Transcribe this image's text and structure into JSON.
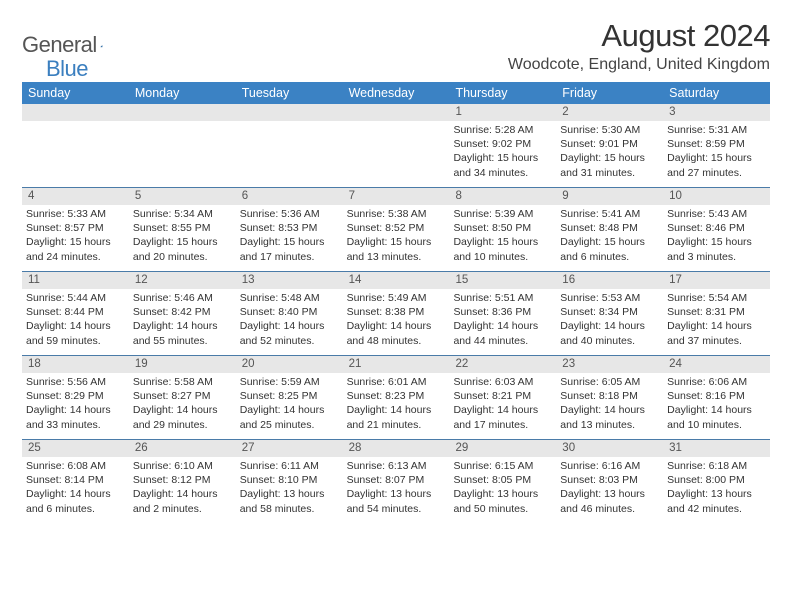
{
  "logo": {
    "text_gray": "General",
    "text_blue": "Blue"
  },
  "title": "August 2024",
  "location": "Woodcote, England, United Kingdom",
  "colors": {
    "header_bg": "#3b82c4",
    "header_fg": "#ffffff",
    "daynum_bg": "#e7e7e7",
    "daynum_fg": "#555555",
    "week_border": "#4a7ba8",
    "logo_gray": "#555555",
    "logo_blue": "#3b7fbf",
    "body_text": "#333333",
    "page_bg": "#ffffff"
  },
  "headers": [
    "Sunday",
    "Monday",
    "Tuesday",
    "Wednesday",
    "Thursday",
    "Friday",
    "Saturday"
  ],
  "weeks": [
    [
      {
        "num": "",
        "lines": []
      },
      {
        "num": "",
        "lines": []
      },
      {
        "num": "",
        "lines": []
      },
      {
        "num": "",
        "lines": []
      },
      {
        "num": "1",
        "lines": [
          "Sunrise: 5:28 AM",
          "Sunset: 9:02 PM",
          "Daylight: 15 hours",
          "and 34 minutes."
        ]
      },
      {
        "num": "2",
        "lines": [
          "Sunrise: 5:30 AM",
          "Sunset: 9:01 PM",
          "Daylight: 15 hours",
          "and 31 minutes."
        ]
      },
      {
        "num": "3",
        "lines": [
          "Sunrise: 5:31 AM",
          "Sunset: 8:59 PM",
          "Daylight: 15 hours",
          "and 27 minutes."
        ]
      }
    ],
    [
      {
        "num": "4",
        "lines": [
          "Sunrise: 5:33 AM",
          "Sunset: 8:57 PM",
          "Daylight: 15 hours",
          "and 24 minutes."
        ]
      },
      {
        "num": "5",
        "lines": [
          "Sunrise: 5:34 AM",
          "Sunset: 8:55 PM",
          "Daylight: 15 hours",
          "and 20 minutes."
        ]
      },
      {
        "num": "6",
        "lines": [
          "Sunrise: 5:36 AM",
          "Sunset: 8:53 PM",
          "Daylight: 15 hours",
          "and 17 minutes."
        ]
      },
      {
        "num": "7",
        "lines": [
          "Sunrise: 5:38 AM",
          "Sunset: 8:52 PM",
          "Daylight: 15 hours",
          "and 13 minutes."
        ]
      },
      {
        "num": "8",
        "lines": [
          "Sunrise: 5:39 AM",
          "Sunset: 8:50 PM",
          "Daylight: 15 hours",
          "and 10 minutes."
        ]
      },
      {
        "num": "9",
        "lines": [
          "Sunrise: 5:41 AM",
          "Sunset: 8:48 PM",
          "Daylight: 15 hours",
          "and 6 minutes."
        ]
      },
      {
        "num": "10",
        "lines": [
          "Sunrise: 5:43 AM",
          "Sunset: 8:46 PM",
          "Daylight: 15 hours",
          "and 3 minutes."
        ]
      }
    ],
    [
      {
        "num": "11",
        "lines": [
          "Sunrise: 5:44 AM",
          "Sunset: 8:44 PM",
          "Daylight: 14 hours",
          "and 59 minutes."
        ]
      },
      {
        "num": "12",
        "lines": [
          "Sunrise: 5:46 AM",
          "Sunset: 8:42 PM",
          "Daylight: 14 hours",
          "and 55 minutes."
        ]
      },
      {
        "num": "13",
        "lines": [
          "Sunrise: 5:48 AM",
          "Sunset: 8:40 PM",
          "Daylight: 14 hours",
          "and 52 minutes."
        ]
      },
      {
        "num": "14",
        "lines": [
          "Sunrise: 5:49 AM",
          "Sunset: 8:38 PM",
          "Daylight: 14 hours",
          "and 48 minutes."
        ]
      },
      {
        "num": "15",
        "lines": [
          "Sunrise: 5:51 AM",
          "Sunset: 8:36 PM",
          "Daylight: 14 hours",
          "and 44 minutes."
        ]
      },
      {
        "num": "16",
        "lines": [
          "Sunrise: 5:53 AM",
          "Sunset: 8:34 PM",
          "Daylight: 14 hours",
          "and 40 minutes."
        ]
      },
      {
        "num": "17",
        "lines": [
          "Sunrise: 5:54 AM",
          "Sunset: 8:31 PM",
          "Daylight: 14 hours",
          "and 37 minutes."
        ]
      }
    ],
    [
      {
        "num": "18",
        "lines": [
          "Sunrise: 5:56 AM",
          "Sunset: 8:29 PM",
          "Daylight: 14 hours",
          "and 33 minutes."
        ]
      },
      {
        "num": "19",
        "lines": [
          "Sunrise: 5:58 AM",
          "Sunset: 8:27 PM",
          "Daylight: 14 hours",
          "and 29 minutes."
        ]
      },
      {
        "num": "20",
        "lines": [
          "Sunrise: 5:59 AM",
          "Sunset: 8:25 PM",
          "Daylight: 14 hours",
          "and 25 minutes."
        ]
      },
      {
        "num": "21",
        "lines": [
          "Sunrise: 6:01 AM",
          "Sunset: 8:23 PM",
          "Daylight: 14 hours",
          "and 21 minutes."
        ]
      },
      {
        "num": "22",
        "lines": [
          "Sunrise: 6:03 AM",
          "Sunset: 8:21 PM",
          "Daylight: 14 hours",
          "and 17 minutes."
        ]
      },
      {
        "num": "23",
        "lines": [
          "Sunrise: 6:05 AM",
          "Sunset: 8:18 PM",
          "Daylight: 14 hours",
          "and 13 minutes."
        ]
      },
      {
        "num": "24",
        "lines": [
          "Sunrise: 6:06 AM",
          "Sunset: 8:16 PM",
          "Daylight: 14 hours",
          "and 10 minutes."
        ]
      }
    ],
    [
      {
        "num": "25",
        "lines": [
          "Sunrise: 6:08 AM",
          "Sunset: 8:14 PM",
          "Daylight: 14 hours",
          "and 6 minutes."
        ]
      },
      {
        "num": "26",
        "lines": [
          "Sunrise: 6:10 AM",
          "Sunset: 8:12 PM",
          "Daylight: 14 hours",
          "and 2 minutes."
        ]
      },
      {
        "num": "27",
        "lines": [
          "Sunrise: 6:11 AM",
          "Sunset: 8:10 PM",
          "Daylight: 13 hours",
          "and 58 minutes."
        ]
      },
      {
        "num": "28",
        "lines": [
          "Sunrise: 6:13 AM",
          "Sunset: 8:07 PM",
          "Daylight: 13 hours",
          "and 54 minutes."
        ]
      },
      {
        "num": "29",
        "lines": [
          "Sunrise: 6:15 AM",
          "Sunset: 8:05 PM",
          "Daylight: 13 hours",
          "and 50 minutes."
        ]
      },
      {
        "num": "30",
        "lines": [
          "Sunrise: 6:16 AM",
          "Sunset: 8:03 PM",
          "Daylight: 13 hours",
          "and 46 minutes."
        ]
      },
      {
        "num": "31",
        "lines": [
          "Sunrise: 6:18 AM",
          "Sunset: 8:00 PM",
          "Daylight: 13 hours",
          "and 42 minutes."
        ]
      }
    ]
  ]
}
